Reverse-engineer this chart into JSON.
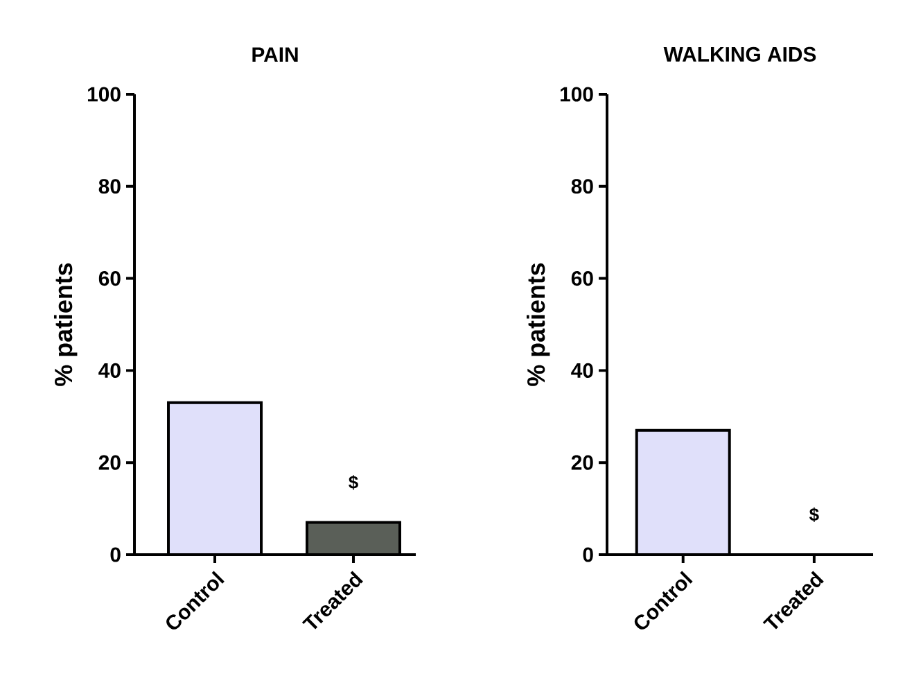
{
  "chart_data": [
    {
      "type": "bar",
      "title": "PAIN",
      "ylabel": "% patients",
      "categories": [
        "Control",
        "Treated"
      ],
      "values": [
        33,
        7
      ],
      "colors": [
        "#e0e0fa",
        "#5a5f58"
      ],
      "ylim": [
        0,
        100
      ],
      "yticks": [
        0,
        20,
        40,
        60,
        80,
        100
      ],
      "grid": false,
      "annotations": [
        "$"
      ]
    },
    {
      "type": "bar",
      "title": "WALKING AIDS",
      "ylabel": "% patients",
      "categories": [
        "Control",
        "Treated"
      ],
      "values": [
        27,
        0
      ],
      "colors": [
        "#e0e0fa",
        "#5a5f58"
      ],
      "ylim": [
        0,
        100
      ],
      "yticks": [
        0,
        20,
        40,
        60,
        80,
        100
      ],
      "grid": false,
      "annotations": [
        "$"
      ]
    }
  ]
}
